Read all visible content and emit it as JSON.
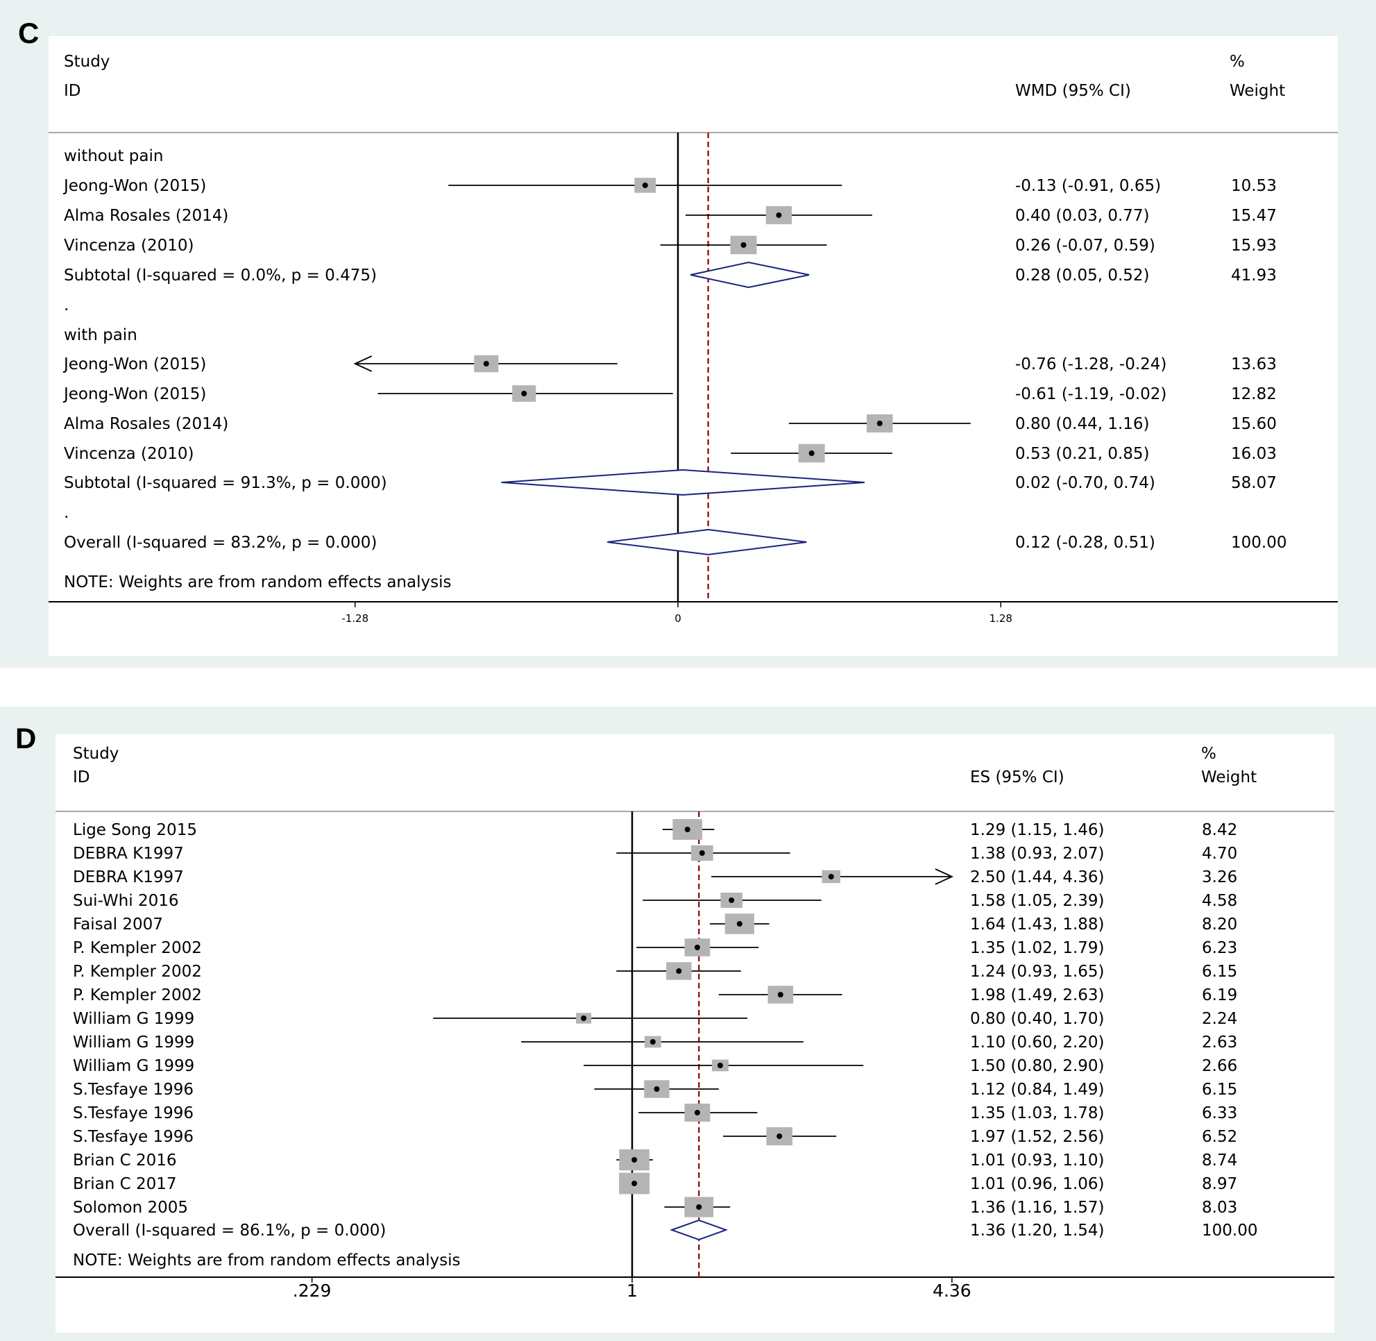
{
  "chart_data": [
    {
      "type": "forest",
      "panel": "C",
      "header": {
        "study": "Study",
        "id": "ID",
        "effect": "WMD (95% CI)",
        "pct": "%",
        "weight": "Weight"
      },
      "xticks": [
        -1.28,
        0,
        1.28
      ],
      "xtick_labels": [
        "-1.28",
        "0",
        "1.28"
      ],
      "null_value": 0,
      "pooled_value": 0.12,
      "note": "NOTE: Weights are from random effects analysis",
      "rows": [
        {
          "kind": "group",
          "label": "without pain"
        },
        {
          "kind": "study",
          "label": "Jeong-Won (2015)",
          "est": -0.13,
          "lo": -0.91,
          "hi": 0.65,
          "ci": "-0.13 (-0.91, 0.65)",
          "weight": 10.53,
          "weight_label": "10.53"
        },
        {
          "kind": "study",
          "label": "Alma Rosales (2014)",
          "est": 0.4,
          "lo": 0.03,
          "hi": 0.77,
          "ci": "0.40 (0.03, 0.77)",
          "weight": 15.47,
          "weight_label": "15.47"
        },
        {
          "kind": "study",
          "label": "Vincenza (2010)",
          "est": 0.26,
          "lo": -0.07,
          "hi": 0.59,
          "ci": "0.26 (-0.07, 0.59)",
          "weight": 15.93,
          "weight_label": "15.93"
        },
        {
          "kind": "summary",
          "label": "Subtotal  (I-squared = 0.0%, p = 0.475)",
          "est": 0.28,
          "lo": 0.05,
          "hi": 0.52,
          "ci": "0.28 (0.05, 0.52)",
          "weight_label": "41.93"
        },
        {
          "kind": "dot",
          "label": "."
        },
        {
          "kind": "group",
          "label": "with pain"
        },
        {
          "kind": "study",
          "label": "Jeong-Won (2015)",
          "est": -0.76,
          "lo": -1.28,
          "hi": -0.24,
          "ci": "-0.76 (-1.28, -0.24)",
          "weight": 13.63,
          "weight_label": "13.63",
          "arrow_left": true
        },
        {
          "kind": "study",
          "label": "Jeong-Won (2015)",
          "est": -0.61,
          "lo": -1.19,
          "hi": -0.02,
          "ci": "-0.61 (-1.19, -0.02)",
          "weight": 12.82,
          "weight_label": "12.82"
        },
        {
          "kind": "study",
          "label": "Alma Rosales (2014)",
          "est": 0.8,
          "lo": 0.44,
          "hi": 1.16,
          "ci": "0.80 (0.44, 1.16)",
          "weight": 15.6,
          "weight_label": "15.60"
        },
        {
          "kind": "study",
          "label": "Vincenza (2010)",
          "est": 0.53,
          "lo": 0.21,
          "hi": 0.85,
          "ci": "0.53 (0.21, 0.85)",
          "weight": 16.03,
          "weight_label": "16.03"
        },
        {
          "kind": "summary",
          "label": "Subtotal  (I-squared = 91.3%, p = 0.000)",
          "est": 0.02,
          "lo": -0.7,
          "hi": 0.74,
          "ci": "0.02 (-0.70, 0.74)",
          "weight_label": "58.07"
        },
        {
          "kind": "dot",
          "label": "."
        },
        {
          "kind": "summary",
          "label": "Overall  (I-squared = 83.2%, p = 0.000)",
          "est": 0.12,
          "lo": -0.28,
          "hi": 0.51,
          "ci": "0.12 (-0.28, 0.51)",
          "weight_label": "100.00"
        }
      ]
    },
    {
      "type": "forest",
      "panel": "D",
      "scale": "log",
      "header": {
        "study": "Study",
        "id": "ID",
        "effect": "ES (95% CI)",
        "pct": "%",
        "weight": "Weight"
      },
      "xticks": [
        0.229,
        1,
        4.36
      ],
      "xtick_labels": [
        ".229",
        "1",
        "4.36"
      ],
      "null_value": 1,
      "pooled_value": 1.36,
      "note": "NOTE: Weights are from random effects analysis",
      "rows": [
        {
          "kind": "study",
          "label": "Lige Song 2015",
          "est": 1.29,
          "lo": 1.15,
          "hi": 1.46,
          "ci": "1.29 (1.15, 1.46)",
          "weight": 8.42,
          "weight_label": "8.42"
        },
        {
          "kind": "study",
          "label": "DEBRA K1997",
          "est": 1.38,
          "lo": 0.93,
          "hi": 2.07,
          "ci": "1.38 (0.93, 2.07)",
          "weight": 4.7,
          "weight_label": "4.70"
        },
        {
          "kind": "study",
          "label": "DEBRA K1997",
          "est": 2.5,
          "lo": 1.44,
          "hi": 4.36,
          "ci": "2.50 (1.44, 4.36)",
          "weight": 3.26,
          "weight_label": "3.26",
          "arrow_right": true
        },
        {
          "kind": "study",
          "label": "Sui-Whi 2016",
          "est": 1.58,
          "lo": 1.05,
          "hi": 2.39,
          "ci": "1.58 (1.05, 2.39)",
          "weight": 4.58,
          "weight_label": "4.58"
        },
        {
          "kind": "study",
          "label": "Faisal 2007",
          "est": 1.64,
          "lo": 1.43,
          "hi": 1.88,
          "ci": "1.64 (1.43, 1.88)",
          "weight": 8.2,
          "weight_label": "8.20"
        },
        {
          "kind": "study",
          "label": "P. Kempler 2002",
          "est": 1.35,
          "lo": 1.02,
          "hi": 1.79,
          "ci": "1.35 (1.02, 1.79)",
          "weight": 6.23,
          "weight_label": "6.23"
        },
        {
          "kind": "study",
          "label": "P. Kempler 2002",
          "est": 1.24,
          "lo": 0.93,
          "hi": 1.65,
          "ci": "1.24 (0.93, 1.65)",
          "weight": 6.15,
          "weight_label": "6.15"
        },
        {
          "kind": "study",
          "label": "P. Kempler 2002",
          "est": 1.98,
          "lo": 1.49,
          "hi": 2.63,
          "ci": "1.98 (1.49, 2.63)",
          "weight": 6.19,
          "weight_label": "6.19"
        },
        {
          "kind": "study",
          "label": "William G 1999",
          "est": 0.8,
          "lo": 0.4,
          "hi": 1.7,
          "ci": "0.80 (0.40, 1.70)",
          "weight": 2.24,
          "weight_label": "2.24"
        },
        {
          "kind": "study",
          "label": "William G 1999",
          "est": 1.1,
          "lo": 0.6,
          "hi": 2.2,
          "ci": "1.10 (0.60, 2.20)",
          "weight": 2.63,
          "weight_label": "2.63"
        },
        {
          "kind": "study",
          "label": "William G 1999",
          "est": 1.5,
          "lo": 0.8,
          "hi": 2.9,
          "ci": "1.50 (0.80, 2.90)",
          "weight": 2.66,
          "weight_label": "2.66"
        },
        {
          "kind": "study",
          "label": "S.Tesfaye 1996",
          "est": 1.12,
          "lo": 0.84,
          "hi": 1.49,
          "ci": "1.12 (0.84, 1.49)",
          "weight": 6.15,
          "weight_label": "6.15"
        },
        {
          "kind": "study",
          "label": "S.Tesfaye 1996",
          "est": 1.35,
          "lo": 1.03,
          "hi": 1.78,
          "ci": "1.35 (1.03, 1.78)",
          "weight": 6.33,
          "weight_label": "6.33"
        },
        {
          "kind": "study",
          "label": "S.Tesfaye 1996",
          "est": 1.97,
          "lo": 1.52,
          "hi": 2.56,
          "ci": "1.97 (1.52, 2.56)",
          "weight": 6.52,
          "weight_label": "6.52"
        },
        {
          "kind": "study",
          "label": "Brian C 2016",
          "est": 1.01,
          "lo": 0.93,
          "hi": 1.1,
          "ci": "1.01 (0.93, 1.10)",
          "weight": 8.74,
          "weight_label": "8.74"
        },
        {
          "kind": "study",
          "label": "Brian C 2017",
          "est": 1.01,
          "lo": 0.96,
          "hi": 1.06,
          "ci": "1.01 (0.96, 1.06)",
          "weight": 8.97,
          "weight_label": "8.97"
        },
        {
          "kind": "study",
          "label": "Solomon 2005",
          "est": 1.36,
          "lo": 1.16,
          "hi": 1.57,
          "ci": "1.36 (1.16, 1.57)",
          "weight": 8.03,
          "weight_label": "8.03"
        },
        {
          "kind": "summary",
          "label": "Overall  (I-squared = 86.1%, p = 0.000)",
          "est": 1.36,
          "lo": 1.2,
          "hi": 1.54,
          "ci": "1.36 (1.20, 1.54)",
          "weight_label": "100.00"
        }
      ]
    }
  ]
}
